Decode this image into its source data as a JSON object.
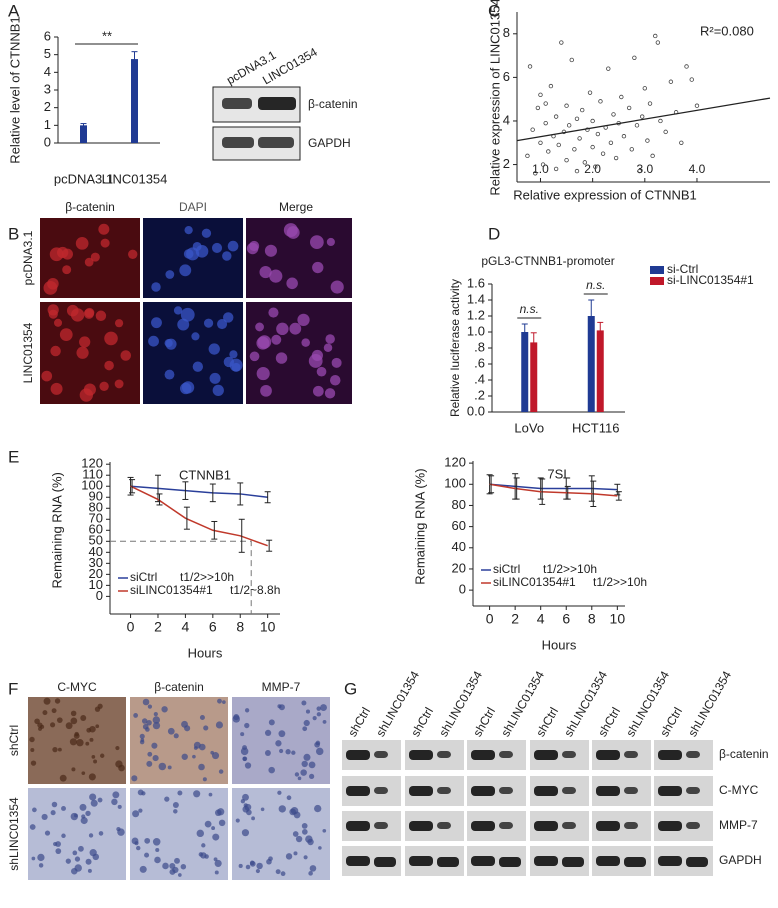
{
  "panels": [
    "A",
    "B",
    "C",
    "D",
    "E",
    "F",
    "G"
  ],
  "chart_data": [
    {
      "type": "bar",
      "ylabel": "Relative level of CTNNB1",
      "categories": [
        "pcDNA3.1",
        "LINC01354"
      ],
      "values": [
        1.0,
        4.75
      ],
      "errors": [
        0.1,
        0.42
      ],
      "color": "#1f3a93",
      "ylim": [
        0,
        6
      ],
      "yticks": [
        0,
        1,
        2,
        3,
        4,
        5,
        6
      ],
      "annotation": "**"
    },
    {
      "type": "scatter",
      "xlabel": "Relative expression of CTNNB1",
      "ylabel": "Relative expression of LINC01354",
      "annotation": "R²=0.080",
      "color": "#444444",
      "x": [
        0.75,
        0.8,
        0.85,
        0.9,
        0.95,
        1.0,
        1.0,
        1.05,
        1.1,
        1.1,
        1.15,
        1.2,
        1.25,
        1.3,
        1.3,
        1.35,
        1.4,
        1.45,
        1.5,
        1.5,
        1.55,
        1.6,
        1.65,
        1.7,
        1.7,
        1.75,
        1.8,
        1.85,
        1.9,
        1.95,
        2.0,
        2.0,
        2.05,
        2.1,
        2.15,
        2.2,
        2.25,
        2.3,
        2.35,
        2.4,
        2.45,
        2.5,
        2.55,
        2.6,
        2.7,
        2.75,
        2.8,
        2.85,
        2.9,
        2.95,
        3.0,
        3.05,
        3.1,
        3.15,
        3.2,
        3.25,
        3.3,
        3.4,
        3.5,
        3.6,
        3.8,
        3.9,
        4.0,
        3.7
      ],
      "values": [
        2.4,
        6.5,
        3.6,
        1.6,
        4.6,
        5.2,
        3.0,
        2.0,
        3.9,
        4.8,
        2.6,
        5.6,
        3.3,
        1.8,
        4.2,
        2.9,
        7.6,
        3.5,
        4.7,
        2.2,
        3.8,
        6.8,
        2.7,
        4.1,
        1.7,
        3.2,
        4.5,
        2.1,
        3.6,
        5.3,
        2.8,
        4.0,
        1.9,
        3.4,
        4.9,
        2.5,
        3.7,
        6.4,
        3.0,
        4.3,
        2.3,
        3.9,
        5.1,
        3.3,
        4.6,
        2.7,
        6.9,
        3.8,
        1.7,
        4.2,
        5.5,
        3.1,
        4.8,
        2.4,
        7.9,
        7.6,
        4.0,
        3.5,
        5.8,
        4.4,
        6.5,
        5.9,
        4.7,
        3.0
      ],
      "trendline": {
        "x": [
          0.55,
          5.4
        ],
        "values": [
          3.1,
          5.05
        ]
      },
      "xlim": [
        0.55,
        5.4
      ],
      "ylim": [
        1.2,
        9
      ],
      "xticks": [
        {
          "value": 1,
          "label": "1.0"
        },
        {
          "value": 2,
          "label": "2.0"
        },
        {
          "value": 3,
          "label": "3.0"
        },
        {
          "value": 4,
          "label": "4.0"
        }
      ],
      "yticks": [
        2,
        4,
        6,
        8
      ]
    },
    {
      "type": "groupbar",
      "title": "pGL3-CTNNB1-promoter",
      "ylabel": "Relative luciferase activity",
      "categories": [
        "LoVo",
        "HCT116"
      ],
      "series": [
        {
          "name": "si-Ctrl",
          "color": "#1f3a93",
          "values": [
            1.0,
            1.2
          ],
          "errors": [
            0.1,
            0.2
          ]
        },
        {
          "name": "si-LINC01354#1",
          "color": "#c0182a",
          "values": [
            0.87,
            1.02
          ],
          "errors": [
            0.12,
            0.1
          ]
        }
      ],
      "annotations": [
        "n.s.",
        "n.s."
      ],
      "ylim": [
        0,
        1.6
      ],
      "yticks": [
        {
          "value": 0,
          "label": "0.0"
        },
        {
          "value": 0.2,
          "label": ".2"
        },
        {
          "value": 0.4,
          "label": ".4"
        },
        {
          "value": 0.6,
          "label": ".6"
        },
        {
          "value": 0.8,
          "label": ".8"
        },
        {
          "value": 1.0,
          "label": "1.0"
        },
        {
          "value": 1.2,
          "label": "1.2"
        },
        {
          "value": 1.4,
          "label": "1.4"
        },
        {
          "value": 1.6,
          "label": "1.6"
        }
      ]
    },
    {
      "type": "line",
      "title": "CTNNB1",
      "xlabel": "Hours",
      "ylabel": "Remaining RNA (%)",
      "x": [
        0,
        2,
        4,
        6,
        8,
        10
      ],
      "series": [
        {
          "name": "siCtrl",
          "note": "t1/2>>10h",
          "color": "#2a3f9a",
          "values": [
            100,
            98,
            96,
            94,
            93,
            90
          ],
          "errors": [
            8,
            12,
            8,
            8,
            10,
            5
          ]
        },
        {
          "name": "siLINC01354#1",
          "note": "t1/2~8.8h",
          "color": "#c0392b",
          "values": [
            100,
            88,
            71,
            60,
            55,
            46
          ],
          "errors": [
            6,
            5,
            10,
            8,
            15,
            5
          ]
        }
      ],
      "reference": {
        "x": 8.8,
        "y": 50
      },
      "xlim": [
        -1.5,
        10.9
      ],
      "ylim": [
        -16,
        122
      ],
      "xticks": [
        0,
        2,
        4,
        6,
        8,
        10
      ],
      "yticks": [
        0,
        10,
        20,
        30,
        40,
        50,
        60,
        70,
        80,
        90,
        100,
        110,
        120
      ]
    },
    {
      "type": "line",
      "title": "7SL",
      "xlabel": "Hours",
      "ylabel": "Remaining RNA (%)",
      "x": [
        0,
        2,
        4,
        6,
        8,
        10
      ],
      "series": [
        {
          "name": "siCtrl",
          "note": "t1/2>>10h",
          "color": "#2a3f9a",
          "values": [
            100,
            98,
            96,
            96,
            96,
            95
          ],
          "errors": [
            9,
            12,
            10,
            10,
            12,
            5
          ]
        },
        {
          "name": "siLINC01354#1",
          "note": "t1/2>>10h",
          "color": "#c0392b",
          "values": [
            100,
            96,
            93,
            92,
            91,
            89
          ],
          "errors": [
            8,
            10,
            12,
            6,
            12,
            4
          ]
        }
      ],
      "xlim": [
        -1.3,
        10.6
      ],
      "ylim": [
        -15,
        122
      ],
      "xticks": [
        0,
        2,
        4,
        6,
        8,
        10
      ],
      "yticks": [
        0,
        20,
        40,
        60,
        80,
        100,
        120
      ]
    }
  ],
  "blot_a": {
    "lanes": [
      "pcDNA3.1",
      "LINC01354"
    ],
    "rows": [
      "β-catenin",
      "GAPDH"
    ]
  },
  "images_b": {
    "columns": [
      "β-catenin",
      "DAPI",
      "Merge"
    ],
    "rows": [
      "pcDNA3.1",
      "LINC01354"
    ]
  },
  "images_f": {
    "columns": [
      "C-MYC",
      "β-catenin",
      "MMP-7"
    ],
    "rows": [
      "shCtrl",
      "shLINC01354"
    ]
  },
  "blot_g": {
    "lanes": [
      "shCtrl",
      "shLINC01354"
    ],
    "groups": 6,
    "rows": [
      "β-catenin",
      "C-MYC",
      "MMP-7",
      "GAPDH"
    ]
  }
}
